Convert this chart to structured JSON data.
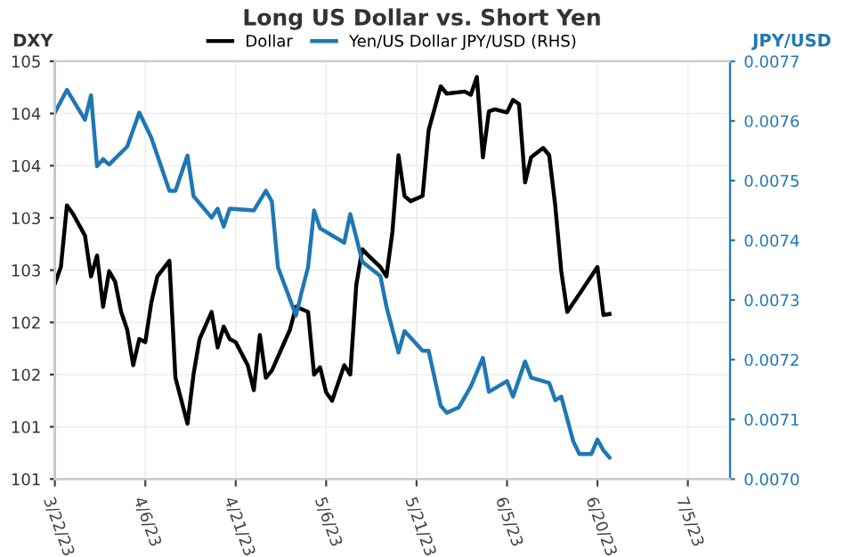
{
  "chart_data": {
    "type": "line",
    "title": "Long US Dollar vs. Short Yen",
    "ylabel": "DXY",
    "y2label": "JPY/USD",
    "legend": "top",
    "grid": true,
    "marker": "none",
    "line_style": "solid",
    "xlim": [
      "2023-03-22",
      "2023-07-12"
    ],
    "xticks": [
      {
        "value": "2023-03-22",
        "label": "3/22/23"
      },
      {
        "value": "2023-04-06",
        "label": "4/6/23"
      },
      {
        "value": "2023-04-21",
        "label": "4/21/23"
      },
      {
        "value": "2023-05-06",
        "label": "5/6/23"
      },
      {
        "value": "2023-05-21",
        "label": "5/21/23"
      },
      {
        "value": "2023-06-05",
        "label": "6/5/23"
      },
      {
        "value": "2023-06-20",
        "label": "6/20/23"
      },
      {
        "value": "2023-07-05",
        "label": "7/5/23"
      }
    ],
    "ylim": [
      101,
      105
    ],
    "yticks": [
      105,
      {
        "value": 104.5,
        "label": "104"
      },
      104,
      {
        "value": 103.5,
        "label": "103"
      },
      103,
      {
        "value": 102.5,
        "label": "102"
      },
      102,
      {
        "value": 101.5,
        "label": "101"
      },
      101
    ],
    "y2lim": [
      0.007,
      0.0077
    ],
    "y2ticks": [
      0.0077,
      0.0076,
      0.0075,
      0.0074,
      0.0073,
      0.0072,
      0.0071,
      {
        "value": 0.007,
        "label": "0.0070"
      }
    ],
    "series": [
      {
        "name": "Dollar",
        "color": "#000000",
        "x": [
          "2023-03-22",
          "2023-03-23",
          "2023-03-24",
          "2023-03-25",
          "2023-03-27",
          "2023-03-28",
          "2023-03-29",
          "2023-03-30",
          "2023-03-31",
          "2023-04-01",
          "2023-04-02",
          "2023-04-03",
          "2023-04-04",
          "2023-04-05",
          "2023-04-06",
          "2023-04-07",
          "2023-04-08",
          "2023-04-10",
          "2023-04-11",
          "2023-04-13",
          "2023-04-14",
          "2023-04-15",
          "2023-04-17",
          "2023-04-18",
          "2023-04-19",
          "2023-04-20",
          "2023-04-21",
          "2023-04-23",
          "2023-04-24",
          "2023-04-25",
          "2023-04-26",
          "2023-04-27",
          "2023-04-30",
          "2023-05-01",
          "2023-05-03",
          "2023-05-04",
          "2023-05-05",
          "2023-05-06",
          "2023-05-07",
          "2023-05-08",
          "2023-05-09",
          "2023-05-10",
          "2023-05-11",
          "2023-05-12",
          "2023-05-13",
          "2023-05-15",
          "2023-05-16",
          "2023-05-17",
          "2023-05-18",
          "2023-05-19",
          "2023-05-20",
          "2023-05-22",
          "2023-05-23",
          "2023-05-25",
          "2023-05-26",
          "2023-05-29",
          "2023-05-30",
          "2023-05-31",
          "2023-06-01",
          "2023-06-02",
          "2023-06-03",
          "2023-06-05",
          "2023-06-06",
          "2023-06-07",
          "2023-06-08",
          "2023-06-09",
          "2023-06-11",
          "2023-06-12",
          "2023-06-13",
          "2023-06-14",
          "2023-06-15",
          "2023-06-17",
          "2023-06-20",
          "2023-06-21",
          "2023-06-22"
        ],
        "values": [
          102.87,
          103.03,
          103.62,
          103.54,
          103.33,
          102.94,
          103.14,
          102.65,
          102.99,
          102.89,
          102.6,
          102.43,
          102.09,
          102.34,
          102.31,
          102.69,
          102.94,
          103.09,
          101.97,
          101.53,
          102.0,
          102.34,
          102.6,
          102.26,
          102.46,
          102.34,
          102.31,
          102.09,
          101.85,
          102.38,
          101.97,
          102.04,
          102.43,
          102.65,
          102.6,
          102.0,
          102.07,
          101.83,
          101.75,
          101.92,
          102.09,
          102.0,
          102.86,
          103.2,
          103.14,
          103.03,
          102.94,
          103.37,
          104.1,
          103.71,
          103.66,
          103.71,
          104.34,
          104.76,
          104.69,
          104.71,
          104.68,
          104.85,
          104.08,
          104.52,
          104.54,
          104.51,
          104.63,
          104.59,
          103.84,
          104.08,
          104.17,
          104.1,
          103.62,
          102.99,
          102.6,
          102.77,
          103.03,
          102.57,
          102.58
        ]
      },
      {
        "name": "Yen/US Dollar JPY/USD (RHS)",
        "color": "#1f77b4",
        "axis": "y2",
        "x": [
          "2023-03-22",
          "2023-03-24",
          "2023-03-27",
          "2023-03-28",
          "2023-03-29",
          "2023-03-30",
          "2023-03-31",
          "2023-04-03",
          "2023-04-05",
          "2023-04-07",
          "2023-04-10",
          "2023-04-11",
          "2023-04-13",
          "2023-04-14",
          "2023-04-17",
          "2023-04-18",
          "2023-04-19",
          "2023-04-20",
          "2023-04-24",
          "2023-04-26",
          "2023-04-27",
          "2023-04-28",
          "2023-05-01",
          "2023-05-02",
          "2023-05-03",
          "2023-05-04",
          "2023-05-05",
          "2023-05-09",
          "2023-05-10",
          "2023-05-11",
          "2023-05-12",
          "2023-05-15",
          "2023-05-16",
          "2023-05-18",
          "2023-05-19",
          "2023-05-22",
          "2023-05-23",
          "2023-05-25",
          "2023-05-26",
          "2023-05-28",
          "2023-05-30",
          "2023-06-01",
          "2023-06-02",
          "2023-06-05",
          "2023-06-06",
          "2023-06-08",
          "2023-06-09",
          "2023-06-12",
          "2023-06-13",
          "2023-06-14",
          "2023-06-16",
          "2023-06-17",
          "2023-06-19",
          "2023-06-20",
          "2023-06-21",
          "2023-06-22"
        ],
        "values": [
          0.007614,
          0.007652,
          0.007602,
          0.007643,
          0.007524,
          0.007536,
          0.007527,
          0.007557,
          0.007614,
          0.007572,
          0.007483,
          0.007483,
          0.007542,
          0.007474,
          0.007438,
          0.007453,
          0.007423,
          0.007453,
          0.00745,
          0.007483,
          0.007465,
          0.007355,
          0.007274,
          0.007316,
          0.007355,
          0.00745,
          0.00742,
          0.007396,
          0.007444,
          0.007405,
          0.007364,
          0.00734,
          0.007289,
          0.007212,
          0.007248,
          0.007215,
          0.007215,
          0.007123,
          0.007111,
          0.00712,
          0.007155,
          0.007203,
          0.007146,
          0.007164,
          0.007138,
          0.007197,
          0.00717,
          0.007161,
          0.007132,
          0.007138,
          0.007063,
          0.007042,
          0.007042,
          0.007066,
          0.007048,
          0.007036
        ]
      }
    ]
  }
}
